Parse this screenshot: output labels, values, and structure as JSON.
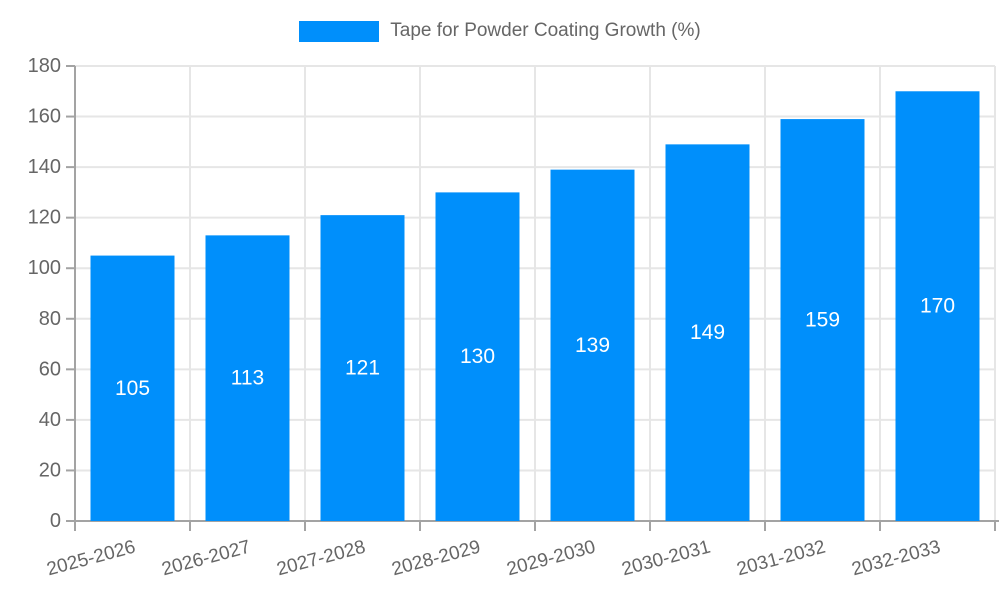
{
  "legend": {
    "label": "Tape for Powder Coating Growth (%)"
  },
  "chart_data": {
    "type": "bar",
    "title": "Tape for Powder Coating Growth (%)",
    "categories": [
      "2025-2026",
      "2026-2027",
      "2027-2028",
      "2028-2029",
      "2029-2030",
      "2030-2031",
      "2031-2032",
      "2032-2033"
    ],
    "values": [
      105,
      113,
      121,
      130,
      139,
      149,
      159,
      170
    ],
    "series_name": "Tape for Powder Coating Growth (%)",
    "xlabel": "",
    "ylabel": "",
    "ylim": [
      0,
      180
    ],
    "yticks": [
      0,
      20,
      40,
      60,
      80,
      100,
      120,
      140,
      160,
      180
    ],
    "grid": true,
    "legend_position": "top-center",
    "bar_value_labels_inside": true,
    "colors": {
      "bar": "#008FFB",
      "bar_value_label": "#ffffff",
      "axis_text": "#666666",
      "grid_line": "#e6e6e6",
      "axis_line": "#a3a3a3",
      "background": "#ffffff"
    }
  }
}
